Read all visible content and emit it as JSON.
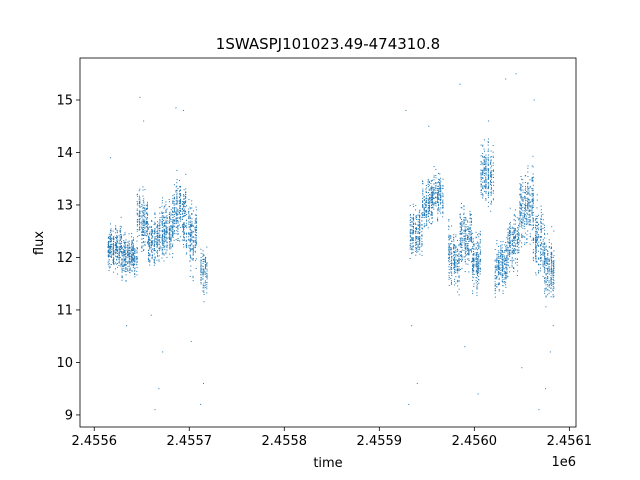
{
  "chart_data": {
    "type": "scatter",
    "title": "1SWASPJ101023.49-474310.8",
    "xlabel": "time",
    "ylabel": "flux",
    "x_offset_label": "1e6",
    "xlim": [
      2455585,
      2456107
    ],
    "ylim": [
      8.77,
      15.8
    ],
    "x_ticks": [
      2455600,
      2455700,
      2455800,
      2455900,
      2456000,
      2456100
    ],
    "x_tick_labels": [
      "2.4556",
      "2.4557",
      "2.4558",
      "2.4559",
      "2.4560",
      "2.4561"
    ],
    "y_ticks": [
      9,
      10,
      11,
      12,
      13,
      14,
      15
    ],
    "y_tick_labels": [
      "9",
      "10",
      "11",
      "12",
      "13",
      "14",
      "15"
    ],
    "grid": false,
    "series_color": "#1f77b4",
    "segments": [
      {
        "x_start": 2455614,
        "x_end": 2455629,
        "center": 12.2,
        "spread": 0.3
      },
      {
        "x_start": 2455629,
        "x_end": 2455645,
        "center": 12.0,
        "spread": 0.3
      },
      {
        "x_start": 2455645,
        "x_end": 2455657,
        "center": 12.7,
        "spread": 0.4
      },
      {
        "x_start": 2455657,
        "x_end": 2455669,
        "center": 12.3,
        "spread": 0.35
      },
      {
        "x_start": 2455669,
        "x_end": 2455684,
        "center": 12.6,
        "spread": 0.4
      },
      {
        "x_start": 2455684,
        "x_end": 2455697,
        "center": 12.9,
        "spread": 0.45
      },
      {
        "x_start": 2455697,
        "x_end": 2455708,
        "center": 12.4,
        "spread": 0.5
      },
      {
        "x_start": 2455712,
        "x_end": 2455719,
        "center": 11.7,
        "spread": 0.35
      },
      {
        "x_start": 2455932,
        "x_end": 2455945,
        "center": 12.5,
        "spread": 0.35
      },
      {
        "x_start": 2455945,
        "x_end": 2455956,
        "center": 13.0,
        "spread": 0.35
      },
      {
        "x_start": 2455956,
        "x_end": 2455967,
        "center": 13.2,
        "spread": 0.3
      },
      {
        "x_start": 2455972,
        "x_end": 2455984,
        "center": 12.0,
        "spread": 0.4
      },
      {
        "x_start": 2455984,
        "x_end": 2455997,
        "center": 12.4,
        "spread": 0.45
      },
      {
        "x_start": 2455997,
        "x_end": 2456007,
        "center": 12.0,
        "spread": 0.4
      },
      {
        "x_start": 2456007,
        "x_end": 2456020,
        "center": 13.5,
        "spread": 0.45
      },
      {
        "x_start": 2456022,
        "x_end": 2456035,
        "center": 11.8,
        "spread": 0.35
      },
      {
        "x_start": 2456035,
        "x_end": 2456047,
        "center": 12.3,
        "spread": 0.4
      },
      {
        "x_start": 2456047,
        "x_end": 2456062,
        "center": 13.0,
        "spread": 0.5
      },
      {
        "x_start": 2456062,
        "x_end": 2456074,
        "center": 12.3,
        "spread": 0.45
      },
      {
        "x_start": 2456074,
        "x_end": 2456085,
        "center": 11.8,
        "spread": 0.45
      }
    ],
    "outliers": [
      [
        2455617,
        13.9
      ],
      [
        2455634,
        10.7
      ],
      [
        2455648,
        15.05
      ],
      [
        2455652,
        14.6
      ],
      [
        2455660,
        10.9
      ],
      [
        2455664,
        9.1
      ],
      [
        2455668,
        9.5
      ],
      [
        2455672,
        10.2
      ],
      [
        2455686,
        14.85
      ],
      [
        2455694,
        14.8
      ],
      [
        2455702,
        10.4
      ],
      [
        2455712,
        9.2
      ],
      [
        2455715,
        9.6
      ],
      [
        2455928,
        14.8
      ],
      [
        2455931,
        9.2
      ],
      [
        2455934,
        10.7
      ],
      [
        2455940,
        9.6
      ],
      [
        2455952,
        14.5
      ],
      [
        2455985,
        15.3
      ],
      [
        2455990,
        10.3
      ],
      [
        2456004,
        9.4
      ],
      [
        2456015,
        14.6
      ],
      [
        2456033,
        15.4
      ],
      [
        2456044,
        15.5
      ],
      [
        2456050,
        9.9
      ],
      [
        2456063,
        15.0
      ],
      [
        2456068,
        9.1
      ],
      [
        2456075,
        9.5
      ],
      [
        2456080,
        10.2
      ],
      [
        2456083,
        10.7
      ]
    ]
  }
}
